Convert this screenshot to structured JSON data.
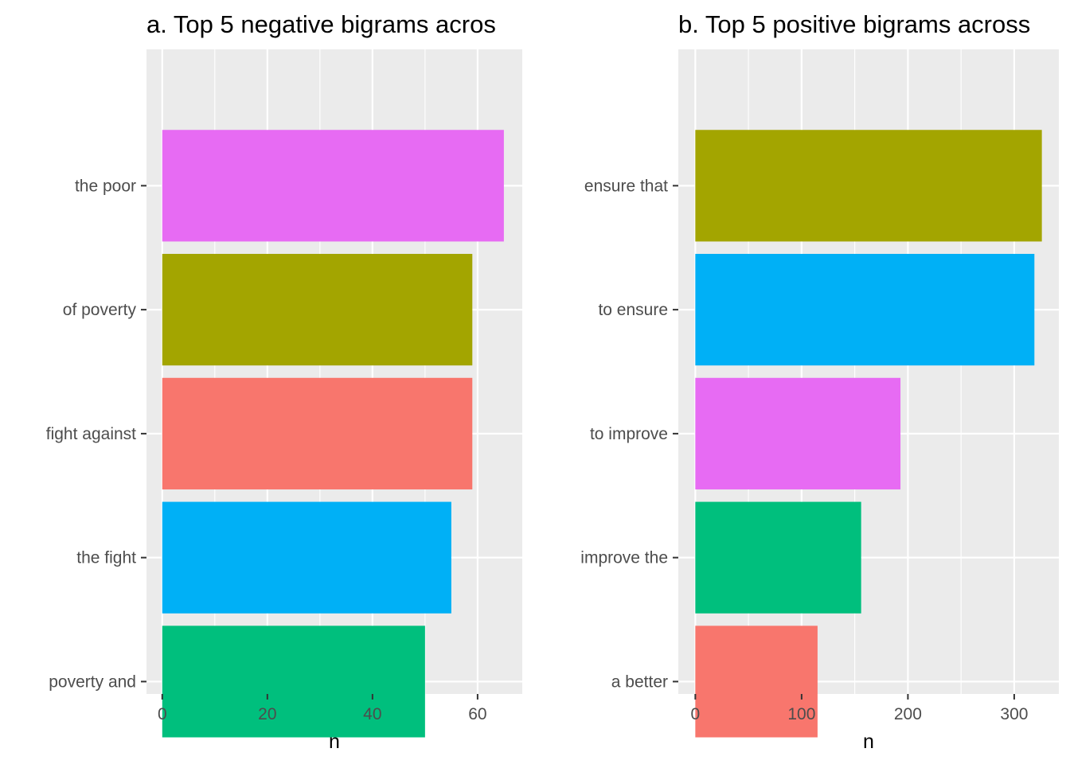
{
  "chart_data": [
    {
      "type": "bar",
      "orientation": "horizontal",
      "title": "a. Top 5 negative bigrams acros",
      "xlabel": "n",
      "ylabel": "",
      "categories": [
        "the poor",
        "of poverty",
        "fight against",
        "the fight",
        "poverty and"
      ],
      "values": [
        65,
        59,
        59,
        55,
        50
      ],
      "colors": [
        "#E76BF3",
        "#A3A500",
        "#F8766D",
        "#00B0F6",
        "#00BF7D"
      ],
      "xlim": [
        -3,
        68.5
      ],
      "xticks": [
        0,
        20,
        40,
        60
      ],
      "tick_labels": [
        "0",
        "20",
        "40",
        "60"
      ],
      "grid": true
    },
    {
      "type": "bar",
      "orientation": "horizontal",
      "title": "b. Top 5 positive bigrams across",
      "xlabel": "n",
      "ylabel": "",
      "categories": [
        "ensure that",
        "to ensure",
        "to improve",
        "improve the",
        "a better"
      ],
      "values": [
        326,
        319,
        193,
        156,
        115
      ],
      "colors": [
        "#A3A500",
        "#00B0F6",
        "#E76BF3",
        "#00BF7D",
        "#F8766D"
      ],
      "xlim": [
        -16,
        342
      ],
      "xticks": [
        0,
        100,
        200,
        300
      ],
      "tick_labels": [
        "0",
        "100",
        "200",
        "300"
      ],
      "grid": true
    }
  ],
  "style": {
    "panel_background": "#EBEBEB",
    "grid_color": "#FFFFFF",
    "tick_color": "#333333"
  }
}
